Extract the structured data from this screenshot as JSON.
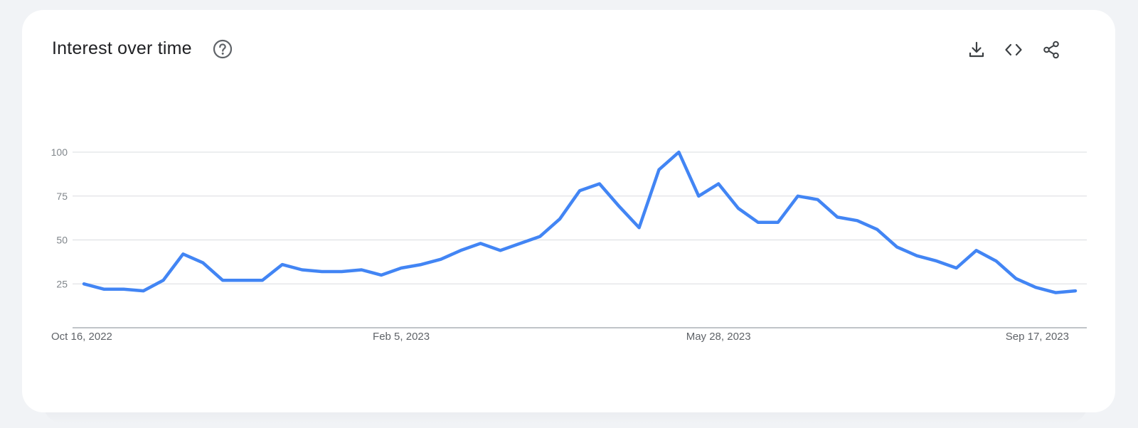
{
  "header": {
    "title": "Interest over time"
  },
  "icons": {
    "help": "help-circle-icon",
    "download": "download-icon",
    "embed": "code-embed-icon",
    "share": "share-icon"
  },
  "colors": {
    "line": "#4285f4",
    "grid": "#dadce0",
    "axis": "#9aa0a6",
    "card": "#ffffff",
    "background": "#f1f3f6"
  },
  "chart_data": {
    "type": "line",
    "title": "Interest over time",
    "xlabel": "",
    "ylabel": "",
    "ylim": [
      0,
      100
    ],
    "grid": true,
    "yticks": [
      25,
      50,
      75,
      100
    ],
    "xtick_labels": [
      {
        "label": "Oct 16, 2022",
        "index": 0
      },
      {
        "label": "Feb 5, 2023",
        "index": 16
      },
      {
        "label": "May 28, 2023",
        "index": 32
      },
      {
        "label": "Sep 17, 2023",
        "index": 48
      }
    ],
    "x": [
      "2022-10-16",
      "2022-10-23",
      "2022-10-30",
      "2022-11-06",
      "2022-11-13",
      "2022-11-20",
      "2022-11-27",
      "2022-12-04",
      "2022-12-11",
      "2022-12-18",
      "2022-12-25",
      "2023-01-01",
      "2023-01-08",
      "2023-01-15",
      "2023-01-22",
      "2023-01-29",
      "2023-02-05",
      "2023-02-12",
      "2023-02-19",
      "2023-02-26",
      "2023-03-05",
      "2023-03-12",
      "2023-03-19",
      "2023-03-26",
      "2023-04-02",
      "2023-04-09",
      "2023-04-16",
      "2023-04-23",
      "2023-04-30",
      "2023-05-07",
      "2023-05-14",
      "2023-05-21",
      "2023-05-28",
      "2023-06-04",
      "2023-06-11",
      "2023-06-18",
      "2023-06-25",
      "2023-07-02",
      "2023-07-09",
      "2023-07-16",
      "2023-07-23",
      "2023-07-30",
      "2023-08-06",
      "2023-08-13",
      "2023-08-20",
      "2023-08-27",
      "2023-09-03",
      "2023-09-10",
      "2023-09-17",
      "2023-09-24",
      "2023-10-01"
    ],
    "series": [
      {
        "values": [
          25,
          22,
          22,
          21,
          27,
          42,
          37,
          27,
          27,
          27,
          36,
          33,
          32,
          32,
          33,
          30,
          34,
          36,
          39,
          44,
          48,
          44,
          48,
          52,
          62,
          78,
          82,
          69,
          57,
          90,
          100,
          75,
          82,
          68,
          60,
          60,
          75,
          73,
          63,
          61,
          56,
          46,
          41,
          38,
          34,
          44,
          38,
          28,
          23,
          20,
          21
        ]
      }
    ]
  }
}
